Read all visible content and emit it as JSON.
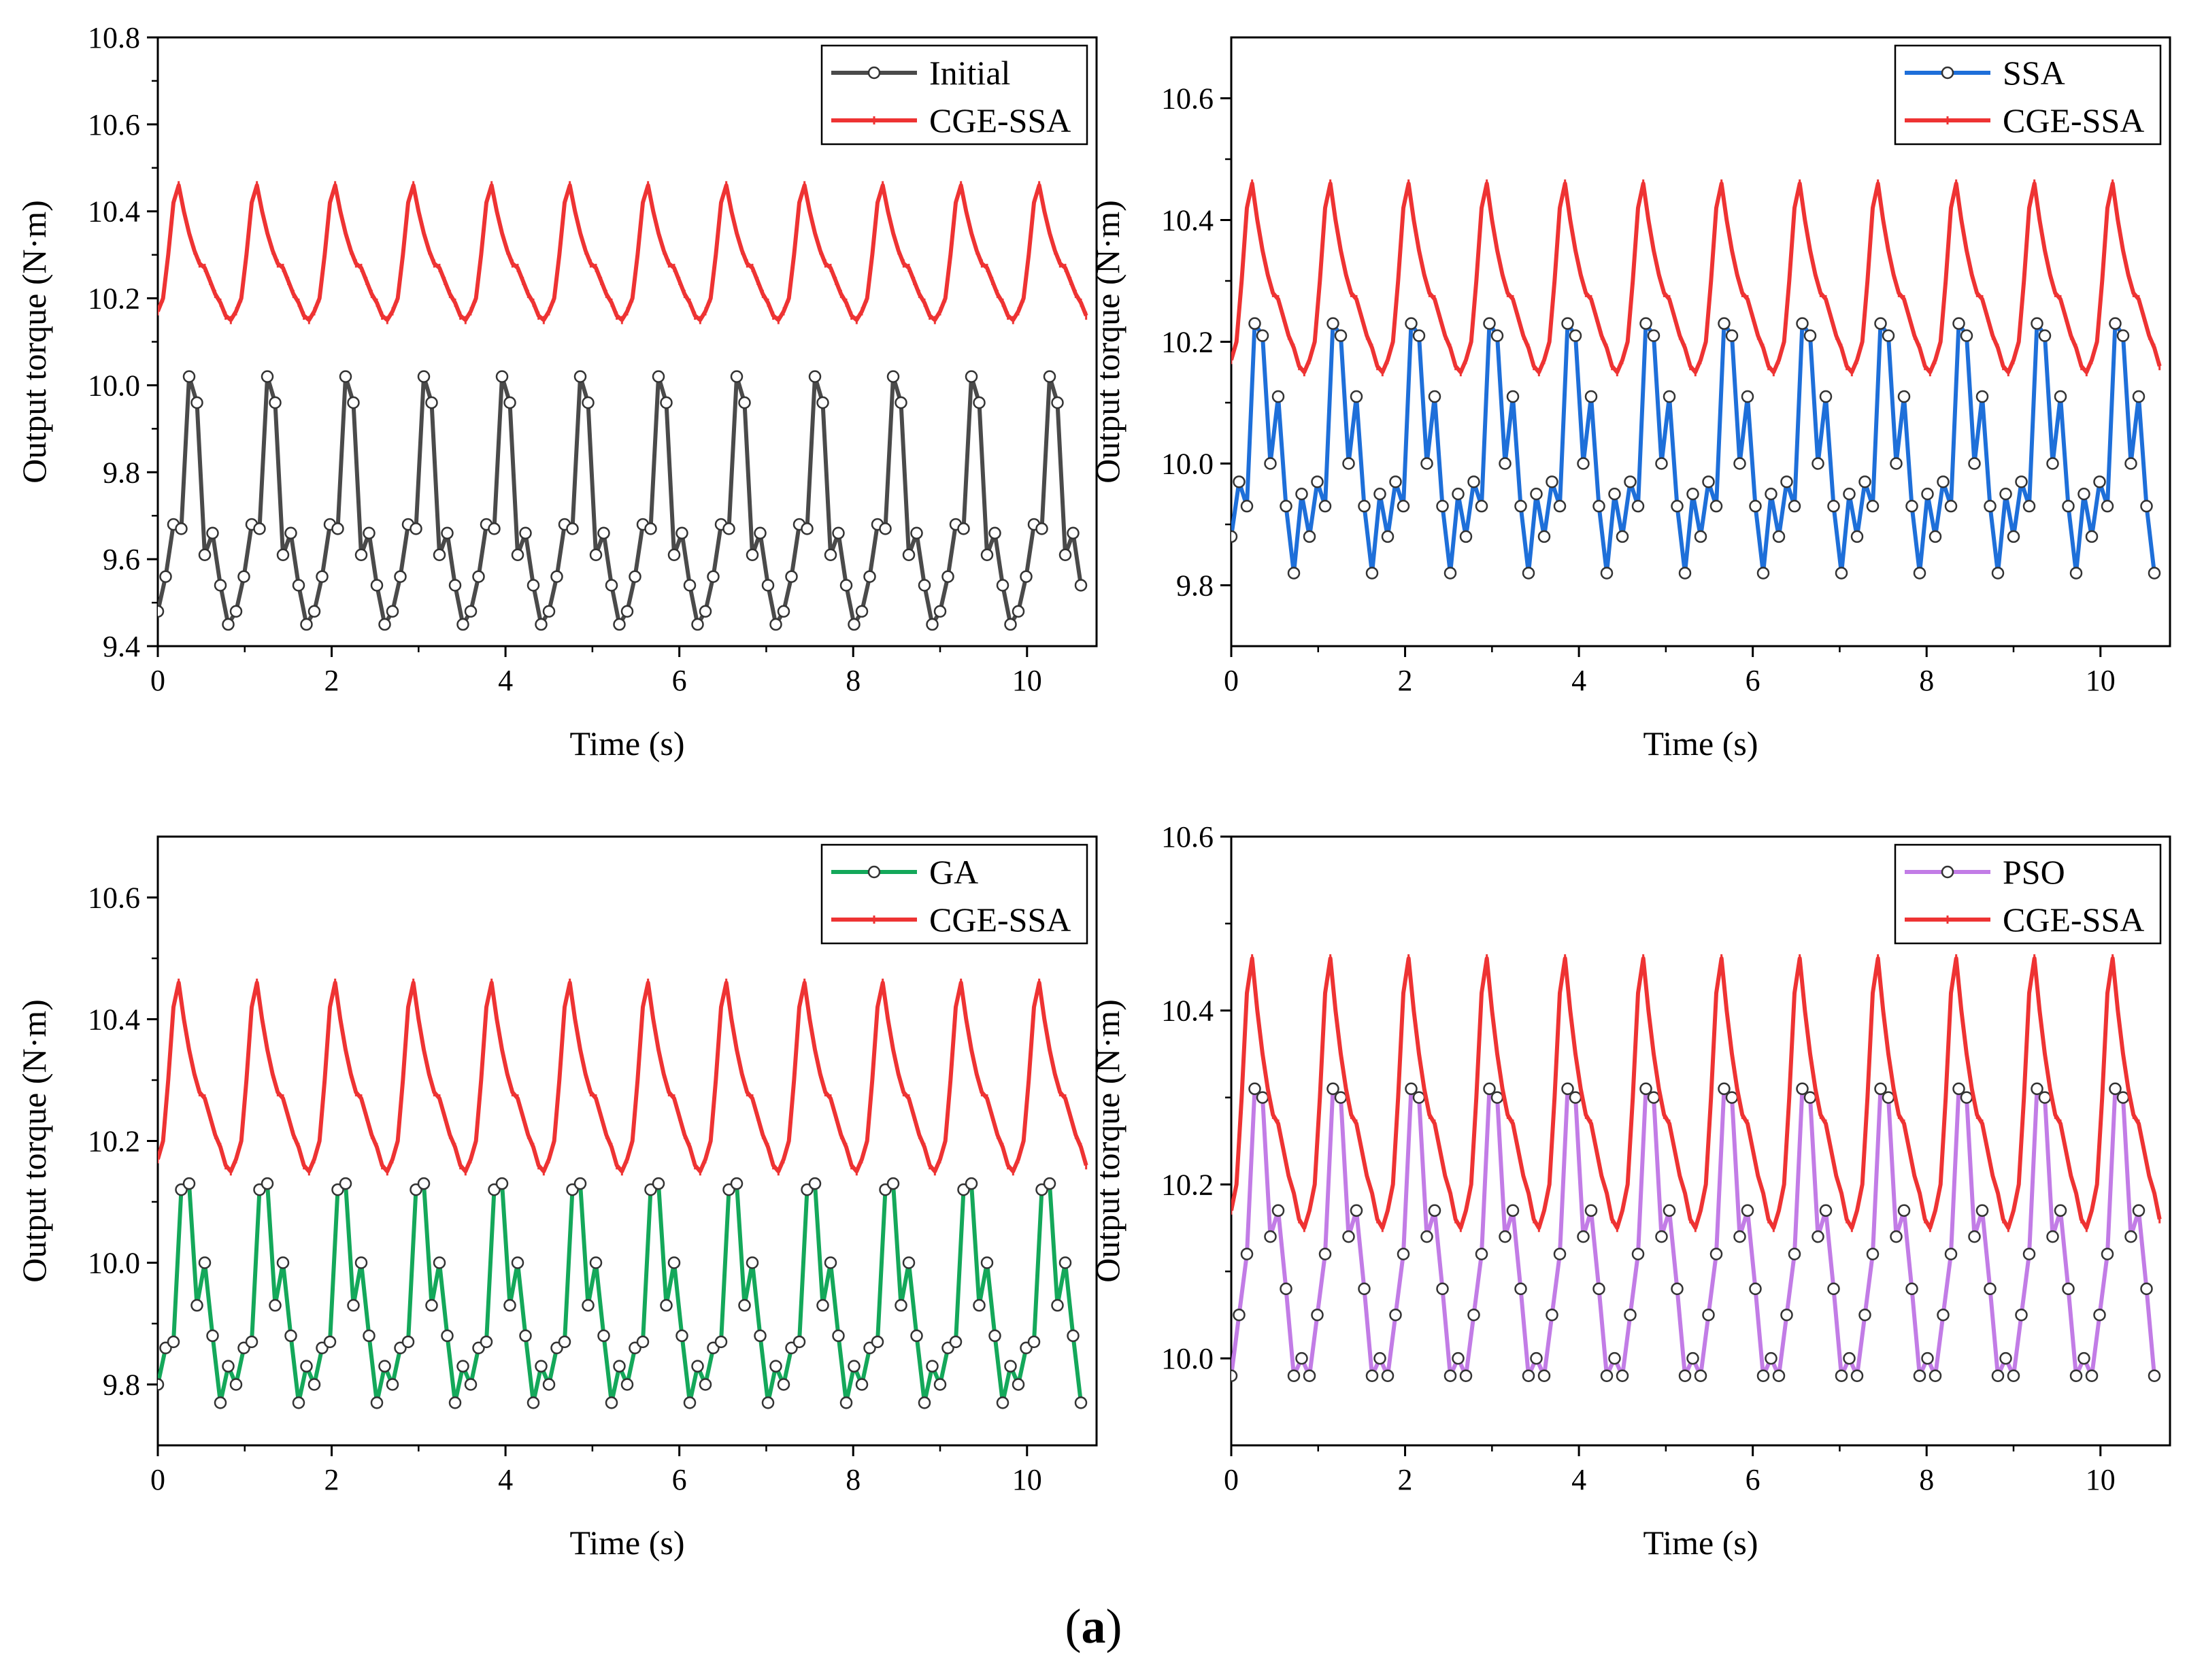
{
  "figure": {
    "caption_letter": "a"
  },
  "colors": {
    "red": "#ee3333",
    "initial": "#4a4a4a",
    "ssa": "#1e6fd9",
    "ga": "#14a85a",
    "pso": "#c27ce6"
  },
  "chart_data": [
    {
      "type": "line",
      "panel": "top-left",
      "xlabel": "Time (s)",
      "ylabel": "Output torque (N·m)",
      "xlim": [
        0,
        10.8
      ],
      "ylim": [
        9.4,
        10.8
      ],
      "xticks": [
        0,
        2,
        4,
        6,
        8,
        10
      ],
      "yticks": [
        9.4,
        9.6,
        9.8,
        10.0,
        10.2,
        10.4,
        10.6,
        10.8
      ],
      "yfmt": 1,
      "legend_position": "top-right",
      "series": [
        {
          "name": "Initial",
          "color": "#4a4a4a",
          "marker": "circle",
          "period": 0.9,
          "dt": 0.09,
          "cycle": [
            9.48,
            9.56,
            9.68,
            9.67,
            10.02,
            9.96,
            9.61,
            9.66,
            9.54,
            9.45
          ]
        },
        {
          "name": "CGE-SSA",
          "color": "#ee3333",
          "marker": "tick",
          "period": 0.9,
          "dt": 0.06,
          "cycle": [
            10.17,
            10.2,
            10.3,
            10.42,
            10.46,
            10.4,
            10.35,
            10.31,
            10.28,
            10.27,
            10.24,
            10.21,
            10.19,
            10.16,
            10.15
          ]
        }
      ]
    },
    {
      "type": "line",
      "panel": "top-right",
      "xlabel": "Time (s)",
      "ylabel": "Output torque (N·m)",
      "xlim": [
        0,
        10.8
      ],
      "ylim": [
        9.7,
        10.7
      ],
      "xticks": [
        0,
        2,
        4,
        6,
        8,
        10
      ],
      "yticks": [
        9.8,
        10.0,
        10.2,
        10.4,
        10.6
      ],
      "yfmt": 1,
      "legend_position": "top-right",
      "series": [
        {
          "name": "SSA",
          "color": "#1e6fd9",
          "marker": "circle",
          "period": 0.9,
          "dt": 0.09,
          "cycle": [
            9.88,
            9.97,
            9.93,
            10.23,
            10.21,
            10.0,
            10.11,
            9.93,
            9.82,
            9.95
          ]
        },
        {
          "name": "CGE-SSA",
          "color": "#ee3333",
          "marker": "tick",
          "period": 0.9,
          "dt": 0.06,
          "cycle": [
            10.17,
            10.2,
            10.3,
            10.42,
            10.46,
            10.4,
            10.35,
            10.31,
            10.28,
            10.27,
            10.24,
            10.21,
            10.19,
            10.16,
            10.15
          ]
        }
      ]
    },
    {
      "type": "line",
      "panel": "bottom-left",
      "xlabel": "Time (s)",
      "ylabel": "Output torque (N·m)",
      "xlim": [
        0,
        10.8
      ],
      "ylim": [
        9.7,
        10.7
      ],
      "xticks": [
        0,
        2,
        4,
        6,
        8,
        10
      ],
      "yticks": [
        9.8,
        10.0,
        10.2,
        10.4,
        10.6
      ],
      "yfmt": 1,
      "legend_position": "top-right",
      "series": [
        {
          "name": "GA",
          "color": "#14a85a",
          "marker": "circle",
          "period": 0.9,
          "dt": 0.09,
          "cycle": [
            9.8,
            9.86,
            9.87,
            10.12,
            10.13,
            9.93,
            10.0,
            9.88,
            9.77,
            9.83
          ]
        },
        {
          "name": "CGE-SSA",
          "color": "#ee3333",
          "marker": "tick",
          "period": 0.9,
          "dt": 0.06,
          "cycle": [
            10.17,
            10.2,
            10.3,
            10.42,
            10.46,
            10.4,
            10.35,
            10.31,
            10.28,
            10.27,
            10.24,
            10.21,
            10.19,
            10.16,
            10.15
          ]
        }
      ]
    },
    {
      "type": "line",
      "panel": "bottom-right",
      "xlabel": "Time (s)",
      "ylabel": "Output torque (N·m)",
      "xlim": [
        0,
        10.8
      ],
      "ylim": [
        9.9,
        10.6
      ],
      "xticks": [
        0,
        2,
        4,
        6,
        8,
        10
      ],
      "yticks": [
        10.0,
        10.2,
        10.4,
        10.6
      ],
      "yfmt": 1,
      "legend_position": "top-right",
      "series": [
        {
          "name": "PSO",
          "color": "#c27ce6",
          "marker": "circle",
          "period": 0.9,
          "dt": 0.09,
          "cycle": [
            9.98,
            10.05,
            10.12,
            10.31,
            10.3,
            10.14,
            10.17,
            10.08,
            9.98,
            10.0
          ]
        },
        {
          "name": "CGE-SSA",
          "color": "#ee3333",
          "marker": "tick",
          "period": 0.9,
          "dt": 0.06,
          "cycle": [
            10.17,
            10.2,
            10.3,
            10.42,
            10.46,
            10.4,
            10.35,
            10.31,
            10.28,
            10.27,
            10.24,
            10.21,
            10.19,
            10.16,
            10.15
          ]
        }
      ]
    }
  ]
}
